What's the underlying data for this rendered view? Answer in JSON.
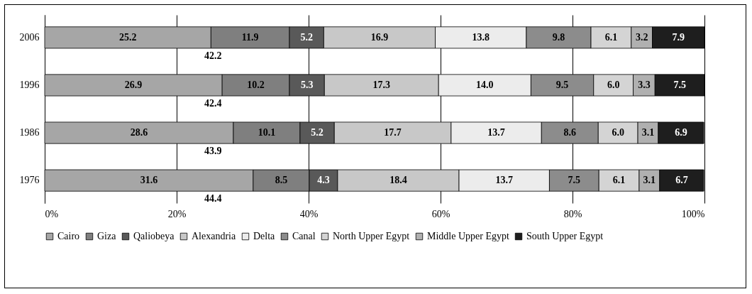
{
  "chart_data": {
    "type": "bar",
    "orientation": "horizontal",
    "stacked": true,
    "grid": "x",
    "legend": "bottom",
    "categories": [
      "2006",
      "1996",
      "1986",
      "1976"
    ],
    "xlim": [
      0,
      100
    ],
    "xticks": [
      {
        "value": 0,
        "label": "0%"
      },
      {
        "value": 20,
        "label": "20%"
      },
      {
        "value": 40,
        "label": "40%"
      },
      {
        "value": 60,
        "label": "60%"
      },
      {
        "value": 80,
        "label": "80%"
      },
      {
        "value": 100,
        "label": "100%"
      }
    ],
    "series": [
      {
        "name": "Cairo",
        "color": "#a6a6a6",
        "values": [
          25.2,
          26.9,
          28.6,
          31.6
        ],
        "value_labels": [
          "25.2",
          "26.9",
          "28.6",
          "31.6"
        ]
      },
      {
        "name": "Giza",
        "color": "#7f7f7f",
        "values": [
          11.9,
          10.2,
          10.1,
          8.5
        ],
        "value_labels": [
          "11.9",
          "10.2",
          "10.1",
          "8.5"
        ]
      },
      {
        "name": "Qaliobeya",
        "color": "#595959",
        "values": [
          5.2,
          5.3,
          5.2,
          4.3
        ],
        "value_labels": [
          "5.2",
          "5.3",
          "5.2",
          "4.3"
        ]
      },
      {
        "name": "Alexandria",
        "color": "#c8c8c8",
        "values": [
          16.9,
          17.3,
          17.7,
          18.4
        ],
        "value_labels": [
          "16.9",
          "17.3",
          "17.7",
          "18.4"
        ]
      },
      {
        "name": "Delta",
        "color": "#ececec",
        "values": [
          13.8,
          14.0,
          13.7,
          13.7
        ],
        "value_labels": [
          "13.8",
          "14.0",
          "13.7",
          "13.7"
        ]
      },
      {
        "name": "Canal",
        "color": "#8c8c8c",
        "values": [
          9.8,
          9.5,
          8.6,
          7.5
        ],
        "value_labels": [
          "9.8",
          "9.5",
          "8.6",
          "7.5"
        ]
      },
      {
        "name": "North Upper Egypt",
        "color": "#d4d4d4",
        "values": [
          6.1,
          6.0,
          6.0,
          6.1
        ],
        "value_labels": [
          "6.1",
          "6.0",
          "6.0",
          "6.1"
        ]
      },
      {
        "name": "Middle Upper Egypt",
        "color": "#b0b0b0",
        "values": [
          3.2,
          3.3,
          3.1,
          3.1
        ],
        "value_labels": [
          "3.2",
          "3.3",
          "3.1",
          "3.1"
        ]
      },
      {
        "name": "South Upper Egypt",
        "color": "#1e1e1e",
        "values": [
          7.9,
          7.5,
          6.9,
          6.7
        ],
        "value_labels": [
          "7.9",
          "7.5",
          "6.9",
          "6.7"
        ]
      }
    ],
    "annotations": [
      "42.2",
      "42.4",
      "43.9",
      "44.4"
    ]
  }
}
